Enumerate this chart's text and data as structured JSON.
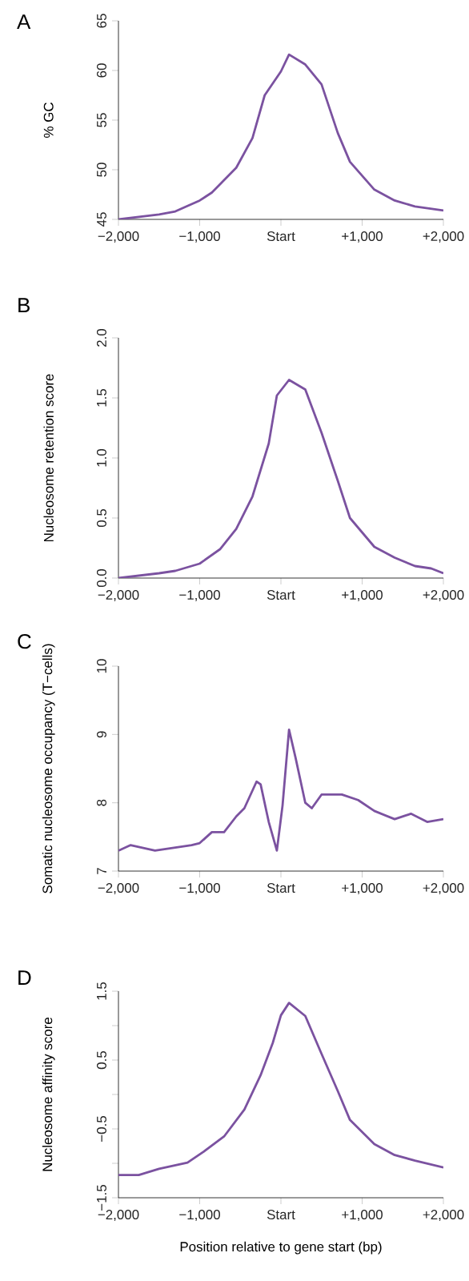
{
  "chart_data": [
    {
      "type": "line",
      "title": "A",
      "ylabel": "% GC",
      "color": "#7b52a0",
      "x": [
        -2000,
        -1500,
        -1300,
        -1000,
        -850,
        -550,
        -350,
        -200,
        0,
        100,
        300,
        500,
        700,
        850,
        1150,
        1400,
        1650,
        2000
      ],
      "values": [
        45.0,
        45.5,
        45.8,
        46.9,
        47.7,
        50.2,
        53.2,
        57.5,
        59.9,
        61.6,
        60.6,
        58.6,
        53.7,
        50.8,
        48.0,
        46.9,
        46.3,
        45.9
      ],
      "xlim": [
        -2000,
        2000
      ],
      "ylim": [
        45,
        65
      ],
      "xticks": [
        {
          "value": -2000,
          "label": "−2,000"
        },
        {
          "value": -1000,
          "label": "−1,000"
        },
        {
          "value": 0,
          "label": "Start"
        },
        {
          "value": 1000,
          "label": "+1,000"
        },
        {
          "value": 2000,
          "label": "+2,000"
        }
      ],
      "yticks": [
        45,
        50,
        55,
        60,
        65
      ]
    },
    {
      "type": "line",
      "title": "B",
      "ylabel": "Nucleosome retention score",
      "color": "#7b52a0",
      "x": [
        -2000,
        -1500,
        -1300,
        -1000,
        -750,
        -550,
        -350,
        -150,
        -50,
        100,
        300,
        500,
        700,
        850,
        1150,
        1400,
        1650,
        1850,
        2000
      ],
      "values": [
        0.0,
        0.04,
        0.06,
        0.12,
        0.24,
        0.41,
        0.68,
        1.12,
        1.52,
        1.65,
        1.57,
        1.21,
        0.81,
        0.5,
        0.26,
        0.17,
        0.1,
        0.08,
        0.04
      ],
      "xlim": [
        -2000,
        2000
      ],
      "ylim": [
        0,
        2
      ],
      "xticks": [
        {
          "value": -2000,
          "label": "−2,000"
        },
        {
          "value": -1000,
          "label": "−1,000"
        },
        {
          "value": 0,
          "label": "Start"
        },
        {
          "value": 1000,
          "label": "+1,000"
        },
        {
          "value": 2000,
          "label": "+2,000"
        }
      ],
      "yticks": [
        {
          "value": 0,
          "label": "0.0"
        },
        {
          "value": 0.5,
          "label": "0.5"
        },
        {
          "value": 1,
          "label": "1.0"
        },
        {
          "value": 1.5,
          "label": "1.5"
        },
        {
          "value": 2,
          "label": "2.0"
        }
      ]
    },
    {
      "type": "line",
      "title": "C",
      "ylabel": "Somatic nucleosome occupancy (T−cells)",
      "color": "#7b52a0",
      "x": [
        -2000,
        -1850,
        -1550,
        -1100,
        -1000,
        -850,
        -700,
        -550,
        -450,
        -300,
        -250,
        -150,
        -50,
        20,
        100,
        180,
        300,
        380,
        500,
        750,
        950,
        1150,
        1400,
        1600,
        1800,
        2000
      ],
      "values": [
        7.3,
        7.38,
        7.3,
        7.38,
        7.41,
        7.57,
        7.57,
        7.8,
        7.92,
        8.31,
        8.27,
        7.72,
        7.3,
        7.96,
        9.07,
        8.66,
        8.0,
        7.92,
        8.12,
        8.12,
        8.04,
        7.88,
        7.76,
        7.84,
        7.72,
        7.76
      ],
      "xlim": [
        -2000,
        2000
      ],
      "ylim": [
        7,
        10
      ],
      "xticks": [
        {
          "value": -2000,
          "label": "−2,000"
        },
        {
          "value": -1000,
          "label": "−1,000"
        },
        {
          "value": 0,
          "label": "Start"
        },
        {
          "value": 1000,
          "label": "+1,000"
        },
        {
          "value": 2000,
          "label": "+2,000"
        }
      ],
      "yticks": [
        7,
        8,
        9,
        10
      ]
    },
    {
      "type": "line",
      "title": "D",
      "xlabel": "Position relative to gene start (bp)",
      "ylabel": "Nucleosome affinity score",
      "color": "#7b52a0",
      "x": [
        -2000,
        -1750,
        -1500,
        -1150,
        -950,
        -700,
        -450,
        -250,
        -100,
        0,
        100,
        300,
        500,
        700,
        850,
        1150,
        1400,
        1650,
        2000
      ],
      "values": [
        -1.17,
        -1.17,
        -1.08,
        -0.99,
        -0.83,
        -0.61,
        -0.22,
        0.28,
        0.75,
        1.15,
        1.33,
        1.14,
        0.59,
        0.05,
        -0.37,
        -0.72,
        -0.88,
        -0.96,
        -1.06
      ],
      "xlim": [
        -2000,
        2000
      ],
      "ylim": [
        -1.5,
        1.5
      ],
      "xticks": [
        {
          "value": -2000,
          "label": "−2,000"
        },
        {
          "value": -1000,
          "label": "−1,000"
        },
        {
          "value": 0,
          "label": "Start"
        },
        {
          "value": 1000,
          "label": "+1,000"
        },
        {
          "value": 2000,
          "label": "+2,000"
        }
      ],
      "yticks": [
        {
          "value": -1.5,
          "label": "−1.5"
        },
        {
          "value": -1,
          "label": null
        },
        {
          "value": -0.5,
          "label": "−0.5"
        },
        {
          "value": 0,
          "label": null
        },
        {
          "value": 0.5,
          "label": "0.5"
        },
        {
          "value": 1,
          "label": null
        },
        {
          "value": 1.5,
          "label": "1.5"
        }
      ]
    }
  ]
}
